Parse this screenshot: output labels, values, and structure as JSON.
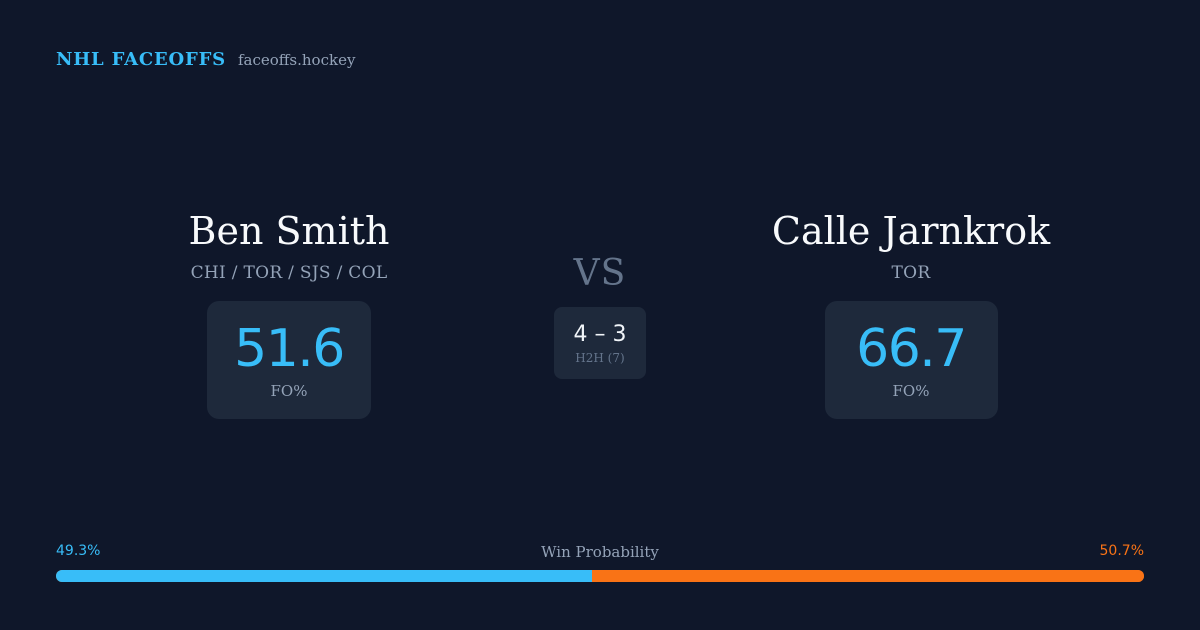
{
  "header": {
    "brand": "NHL FACEOFFS",
    "site": "faceoffs.hockey"
  },
  "players": {
    "left": {
      "name": "Ben Smith",
      "teams": "CHI / TOR / SJS / COL",
      "stat_value": "51.6",
      "stat_label": "FO%"
    },
    "right": {
      "name": "Calle Jarnkrok",
      "teams": "TOR",
      "stat_value": "66.7",
      "stat_label": "FO%"
    }
  },
  "vs_label": "VS",
  "h2h": {
    "score": "4 – 3",
    "label": "H2H (7)"
  },
  "win_probability": {
    "title": "Win Probability",
    "left_label": "49.3%",
    "right_label": "50.7%",
    "left_value": 49.3,
    "right_value": 50.7
  },
  "colors": {
    "background": "#0f172a",
    "card": "#1e293b",
    "accent_blue": "#38bdf8",
    "accent_orange": "#f97316",
    "muted": "#94a3b8"
  }
}
